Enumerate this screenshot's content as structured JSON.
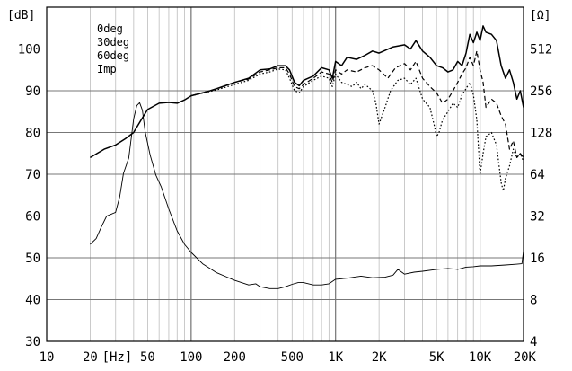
{
  "chart_data": {
    "type": "line",
    "title": "",
    "xlabel": "[Hz]",
    "ylabel_left": "[dB]",
    "ylabel_right": "[Ω]",
    "x_scale": "log",
    "xlim": [
      10,
      20000
    ],
    "ylim_left": [
      30,
      110
    ],
    "ylim_right": [
      4,
      1024
    ],
    "y_right_scale": "log2",
    "grid": true,
    "legend_position": "top-left",
    "x_tick_labels": [
      {
        "value": 10,
        "label": "10"
      },
      {
        "value": 20,
        "label": "20"
      },
      {
        "value": 50,
        "label": "50"
      },
      {
        "value": 100,
        "label": "100"
      },
      {
        "value": 200,
        "label": "200"
      },
      {
        "value": 500,
        "label": "500"
      },
      {
        "value": 1000,
        "label": "1K"
      },
      {
        "value": 2000,
        "label": "2K"
      },
      {
        "value": 5000,
        "label": "5K"
      },
      {
        "value": 10000,
        "label": "10K"
      },
      {
        "value": 20000,
        "label": "20K"
      }
    ],
    "y_left_ticks": [
      30,
      40,
      50,
      60,
      70,
      80,
      90,
      100
    ],
    "y_right_ticks": [
      4,
      8,
      16,
      32,
      64,
      128,
      256,
      512
    ],
    "series": [
      {
        "name": "0deg",
        "axis": "left",
        "style": "solid",
        "points": [
          [
            20,
            74
          ],
          [
            25,
            76
          ],
          [
            30,
            77
          ],
          [
            35,
            78.5
          ],
          [
            40,
            80
          ],
          [
            45,
            83
          ],
          [
            50,
            85.5
          ],
          [
            60,
            87
          ],
          [
            70,
            87.2
          ],
          [
            80,
            87
          ],
          [
            90,
            87.8
          ],
          [
            100,
            88.8
          ],
          [
            130,
            89.8
          ],
          [
            150,
            90.5
          ],
          [
            200,
            92
          ],
          [
            250,
            93
          ],
          [
            300,
            95
          ],
          [
            350,
            95.2
          ],
          [
            400,
            96
          ],
          [
            450,
            96
          ],
          [
            480,
            95
          ],
          [
            520,
            92
          ],
          [
            560,
            91.2
          ],
          [
            600,
            92.5
          ],
          [
            700,
            93.5
          ],
          [
            800,
            95.5
          ],
          [
            900,
            95
          ],
          [
            950,
            93
          ],
          [
            1000,
            97
          ],
          [
            1100,
            96
          ],
          [
            1200,
            98
          ],
          [
            1400,
            97.5
          ],
          [
            1600,
            98.5
          ],
          [
            1800,
            99.5
          ],
          [
            2000,
            99
          ],
          [
            2500,
            100.5
          ],
          [
            3000,
            101
          ],
          [
            3300,
            100
          ],
          [
            3600,
            102
          ],
          [
            4000,
            99.5
          ],
          [
            4500,
            98
          ],
          [
            5000,
            96
          ],
          [
            5500,
            95.5
          ],
          [
            6000,
            94.5
          ],
          [
            6500,
            95
          ],
          [
            7000,
            97
          ],
          [
            7500,
            96
          ],
          [
            8000,
            99
          ],
          [
            8500,
            103.5
          ],
          [
            9000,
            101.5
          ],
          [
            9500,
            104
          ],
          [
            10000,
            102
          ],
          [
            10500,
            105.5
          ],
          [
            11000,
            104
          ],
          [
            12000,
            103.5
          ],
          [
            13000,
            102
          ],
          [
            14000,
            96
          ],
          [
            15000,
            93
          ],
          [
            16000,
            95
          ],
          [
            17000,
            92
          ],
          [
            18000,
            88
          ],
          [
            19000,
            90
          ],
          [
            20000,
            86
          ]
        ]
      },
      {
        "name": "30deg",
        "axis": "left",
        "style": "dashed",
        "points": [
          [
            100,
            88.8
          ],
          [
            150,
            90.4
          ],
          [
            200,
            92
          ],
          [
            250,
            92.8
          ],
          [
            300,
            94.5
          ],
          [
            350,
            95
          ],
          [
            400,
            95.5
          ],
          [
            450,
            95.5
          ],
          [
            480,
            94
          ],
          [
            520,
            91
          ],
          [
            560,
            90.5
          ],
          [
            600,
            91.5
          ],
          [
            700,
            93
          ],
          [
            800,
            94.5
          ],
          [
            900,
            94
          ],
          [
            950,
            92
          ],
          [
            1000,
            95
          ],
          [
            1100,
            94
          ],
          [
            1200,
            95
          ],
          [
            1400,
            94.5
          ],
          [
            1600,
            95.5
          ],
          [
            1800,
            96
          ],
          [
            2000,
            95
          ],
          [
            2300,
            93
          ],
          [
            2600,
            95.5
          ],
          [
            3000,
            96.5
          ],
          [
            3300,
            95
          ],
          [
            3600,
            97
          ],
          [
            4000,
            93
          ],
          [
            4500,
            91
          ],
          [
            5000,
            89.5
          ],
          [
            5500,
            87
          ],
          [
            6000,
            88
          ],
          [
            6500,
            90
          ],
          [
            7000,
            92
          ],
          [
            7500,
            94
          ],
          [
            8000,
            95.5
          ],
          [
            8500,
            98
          ],
          [
            9000,
            96
          ],
          [
            9500,
            99.5
          ],
          [
            10000,
            95
          ],
          [
            10500,
            92
          ],
          [
            11000,
            86
          ],
          [
            12000,
            88
          ],
          [
            13000,
            87
          ],
          [
            14000,
            84
          ],
          [
            15000,
            82
          ],
          [
            16000,
            76
          ],
          [
            17000,
            78
          ],
          [
            18000,
            74
          ],
          [
            19000,
            75
          ],
          [
            20000,
            74
          ]
        ]
      },
      {
        "name": "60deg",
        "axis": "left",
        "style": "dotted",
        "points": [
          [
            100,
            88.8
          ],
          [
            150,
            90.2
          ],
          [
            200,
            91.5
          ],
          [
            250,
            92.5
          ],
          [
            300,
            94
          ],
          [
            350,
            94.5
          ],
          [
            400,
            95.2
          ],
          [
            450,
            95
          ],
          [
            480,
            93
          ],
          [
            520,
            90
          ],
          [
            560,
            89.5
          ],
          [
            600,
            91
          ],
          [
            700,
            92.5
          ],
          [
            800,
            93.5
          ],
          [
            900,
            93
          ],
          [
            950,
            91
          ],
          [
            1000,
            94
          ],
          [
            1100,
            92
          ],
          [
            1200,
            91.5
          ],
          [
            1300,
            91
          ],
          [
            1400,
            92
          ],
          [
            1500,
            90.5
          ],
          [
            1600,
            91.5
          ],
          [
            1800,
            90
          ],
          [
            1900,
            87
          ],
          [
            2000,
            82
          ],
          [
            2200,
            86
          ],
          [
            2400,
            90
          ],
          [
            2700,
            92.5
          ],
          [
            3000,
            93
          ],
          [
            3300,
            91.5
          ],
          [
            3600,
            93
          ],
          [
            4000,
            88
          ],
          [
            4500,
            86
          ],
          [
            4800,
            82
          ],
          [
            5000,
            79
          ],
          [
            5200,
            80
          ],
          [
            5500,
            83
          ],
          [
            6000,
            85
          ],
          [
            6500,
            87
          ],
          [
            7000,
            86
          ],
          [
            7500,
            89
          ],
          [
            8000,
            90.5
          ],
          [
            8500,
            92
          ],
          [
            9000,
            89
          ],
          [
            9500,
            83
          ],
          [
            10000,
            70
          ],
          [
            10500,
            75
          ],
          [
            11000,
            79
          ],
          [
            12000,
            80
          ],
          [
            13000,
            77
          ],
          [
            14000,
            68
          ],
          [
            14500,
            66
          ],
          [
            15000,
            69
          ],
          [
            16000,
            72
          ],
          [
            17000,
            76
          ],
          [
            18000,
            74
          ],
          [
            19000,
            75
          ],
          [
            20000,
            73
          ]
        ]
      },
      {
        "name": "Imp",
        "axis": "right",
        "style": "thin",
        "points": [
          [
            20,
            20
          ],
          [
            22,
            22
          ],
          [
            24,
            27
          ],
          [
            26,
            32
          ],
          [
            28,
            33
          ],
          [
            30,
            34
          ],
          [
            32,
            44
          ],
          [
            34,
            65
          ],
          [
            37,
            84
          ],
          [
            40,
            160
          ],
          [
            42,
            200
          ],
          [
            44,
            210
          ],
          [
            46,
            185
          ],
          [
            48,
            130
          ],
          [
            52,
            88
          ],
          [
            57,
            63
          ],
          [
            62,
            52
          ],
          [
            70,
            36
          ],
          [
            80,
            25
          ],
          [
            90,
            20
          ],
          [
            100,
            17.5
          ],
          [
            120,
            14.5
          ],
          [
            150,
            12.5
          ],
          [
            200,
            11
          ],
          [
            250,
            10.2
          ],
          [
            280,
            10.4
          ],
          [
            300,
            9.9
          ],
          [
            350,
            9.6
          ],
          [
            400,
            9.6
          ],
          [
            450,
            9.9
          ],
          [
            500,
            10.3
          ],
          [
            550,
            10.6
          ],
          [
            600,
            10.6
          ],
          [
            700,
            10.2
          ],
          [
            800,
            10.2
          ],
          [
            900,
            10.4
          ],
          [
            1000,
            11.2
          ],
          [
            1200,
            11.4
          ],
          [
            1500,
            11.8
          ],
          [
            1800,
            11.5
          ],
          [
            2200,
            11.6
          ],
          [
            2500,
            12
          ],
          [
            2700,
            13.2
          ],
          [
            3000,
            12.2
          ],
          [
            3500,
            12.6
          ],
          [
            4000,
            12.8
          ],
          [
            5000,
            13.2
          ],
          [
            6000,
            13.4
          ],
          [
            7000,
            13.2
          ],
          [
            8000,
            13.7
          ],
          [
            9000,
            13.8
          ],
          [
            10000,
            14
          ],
          [
            12000,
            14
          ],
          [
            15000,
            14.2
          ],
          [
            18000,
            14.4
          ],
          [
            19500,
            14.5
          ],
          [
            20000,
            18
          ]
        ]
      }
    ]
  }
}
